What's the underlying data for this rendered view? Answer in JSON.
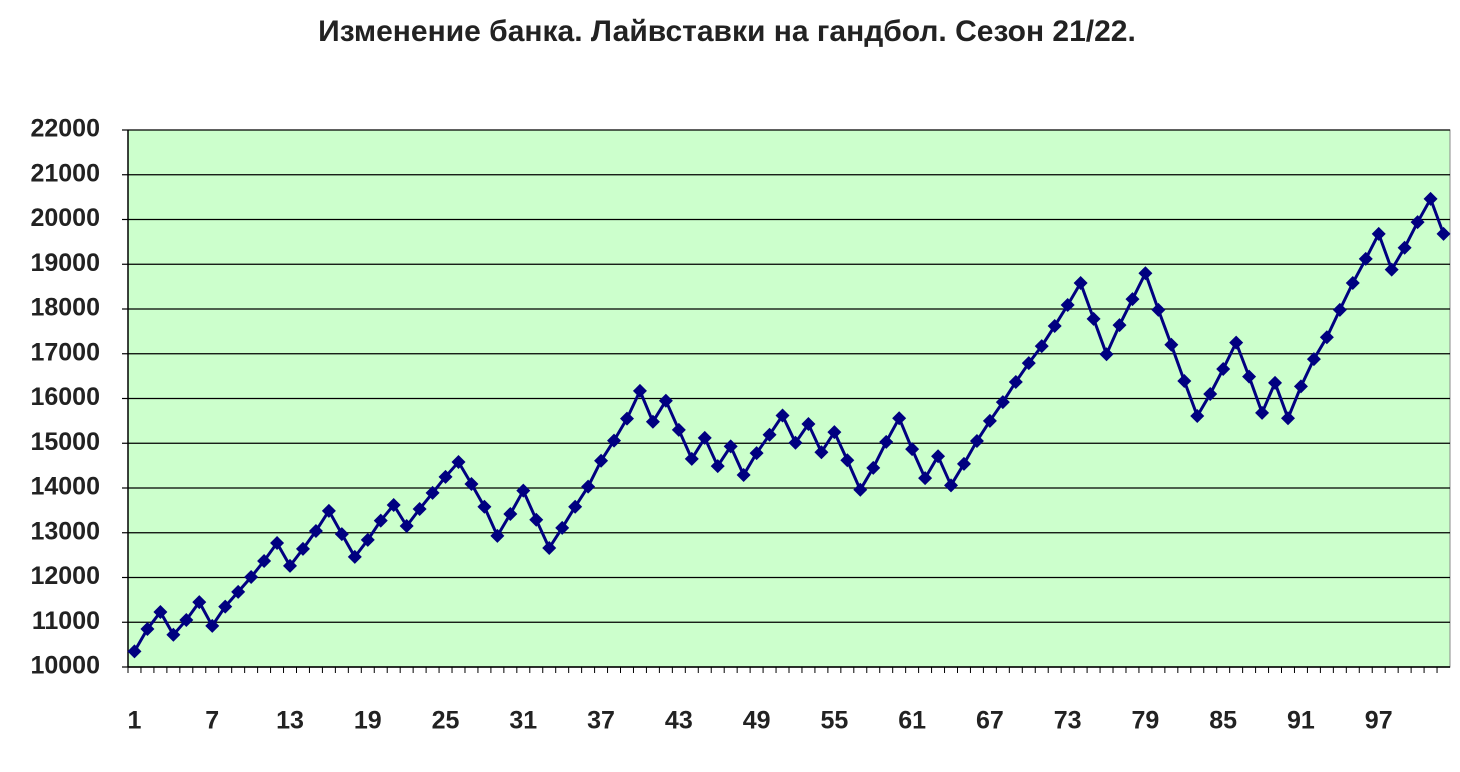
{
  "chart_data": {
    "type": "line",
    "title": "Изменение банка. Лайвставки на гандбол. Сезон 21/22.",
    "categories": [
      "1",
      null,
      null,
      null,
      null,
      null,
      "7",
      null,
      null,
      null,
      null,
      null,
      "13",
      null,
      null,
      null,
      null,
      null,
      "19",
      null,
      null,
      null,
      null,
      null,
      "25",
      null,
      null,
      null,
      null,
      null,
      "31",
      null,
      null,
      null,
      null,
      null,
      "37",
      null,
      null,
      null,
      null,
      null,
      "43",
      null,
      null,
      null,
      null,
      null,
      "49",
      null,
      null,
      null,
      null,
      null,
      "55",
      null,
      null,
      null,
      null,
      null,
      "61",
      null,
      null,
      null,
      null,
      null,
      "67",
      null,
      null,
      null,
      null,
      null,
      "73",
      null,
      null,
      null,
      null,
      null,
      "79",
      null,
      null,
      null,
      null,
      null,
      "85",
      null,
      null,
      null,
      null,
      null,
      "91",
      null,
      null,
      null,
      null,
      null,
      "97",
      null,
      null,
      null,
      null,
      null
    ],
    "values": [
      10350,
      10850,
      11230,
      10720,
      11050,
      11450,
      10920,
      11350,
      11680,
      12010,
      12370,
      12770,
      12260,
      12640,
      13040,
      13490,
      12970,
      12460,
      12840,
      13270,
      13620,
      13150,
      13530,
      13890,
      14250,
      14580,
      14090,
      13580,
      12930,
      13420,
      13940,
      13290,
      12660,
      13110,
      13580,
      14030,
      14610,
      15060,
      15550,
      16170,
      15480,
      15950,
      15300,
      14650,
      15120,
      14490,
      14930,
      14290,
      14780,
      15190,
      15620,
      15010,
      15430,
      14800,
      15250,
      14620,
      13960,
      14450,
      15030,
      15560,
      14870,
      14220,
      14710,
      14060,
      14540,
      15050,
      15500,
      15920,
      16370,
      16790,
      17170,
      17620,
      18090,
      18580,
      17780,
      16990,
      17640,
      18220,
      18800,
      17980,
      17200,
      16390,
      15610,
      16100,
      16660,
      17250,
      16490,
      15680,
      16350,
      15560,
      16270,
      16880,
      17370,
      17980,
      18580,
      19120,
      19680,
      18880,
      19370,
      19940,
      20460,
      19680
    ],
    "color": "#000080",
    "plot_background": "#ccffcc",
    "ylim": [
      10000,
      22000
    ],
    "yticks": [
      10000,
      11000,
      12000,
      13000,
      14000,
      15000,
      16000,
      17000,
      18000,
      19000,
      20000,
      21000,
      22000
    ],
    "grid": true
  }
}
